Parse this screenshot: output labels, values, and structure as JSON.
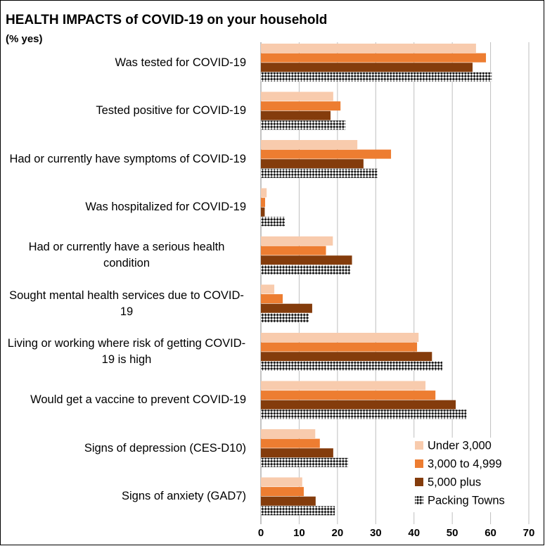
{
  "chart_data": {
    "type": "hbar",
    "title": "HEALTH IMPACTS of COVID-19 on your household",
    "subtitle": "(% yes)",
    "categories": [
      "Was tested for COVID-19",
      "Tested positive for COVID-19",
      "Had or currently have symptoms of COVID-19",
      "Was hospitalized for COVID-19",
      "Had or currently have a serious health condition",
      "Sought mental health services due to COVID-19",
      "Living or working where risk of getting COVID-19 is high",
      "Would get a vaccine to prevent COVID-19",
      "Signs of depression (CES-D10)",
      "Signs of anxiety (GAD7)"
    ],
    "series": [
      {
        "name": "Under 3,000",
        "color": "#f8cbad",
        "values": [
          56.2,
          18.9,
          25.2,
          1.5,
          18.8,
          3.5,
          41.2,
          43.0,
          14.2,
          10.8
        ]
      },
      {
        "name": "3,000 to 4,999",
        "color": "#ed7d31",
        "values": [
          58.8,
          20.8,
          34.0,
          1.1,
          17.0,
          5.7,
          40.8,
          45.6,
          15.4,
          11.2
        ]
      },
      {
        "name": "5,000 plus",
        "color": "#843c0c",
        "values": [
          55.3,
          18.2,
          26.8,
          1.0,
          23.8,
          13.4,
          44.7,
          50.9,
          18.9,
          14.3
        ]
      },
      {
        "name": "Packing Towns",
        "color": "#1a1a1a",
        "pattern": "checker",
        "values": [
          60.3,
          22.1,
          30.5,
          6.3,
          23.3,
          12.5,
          47.4,
          53.7,
          22.8,
          19.3
        ]
      }
    ],
    "xlim": [
      0,
      70
    ],
    "xticks": [
      0,
      10,
      20,
      30,
      40,
      50,
      60,
      70
    ],
    "grid": true,
    "legend": "lower right"
  }
}
